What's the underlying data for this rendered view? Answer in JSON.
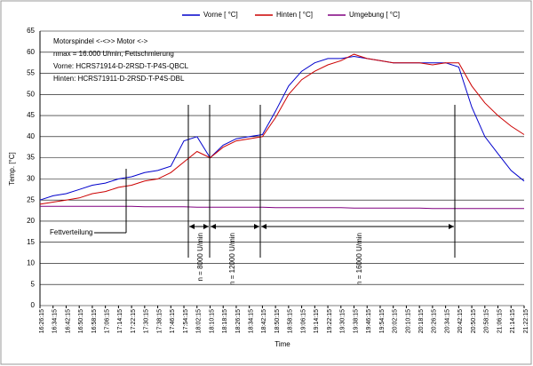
{
  "chart_data": {
    "type": "line",
    "categories": [
      "16:26:15",
      "16:34:15",
      "16:42:15",
      "16:50:15",
      "16:58:15",
      "17:06:15",
      "17:14:15",
      "17:22:15",
      "17:30:15",
      "17:38:15",
      "17:46:15",
      "17:54:15",
      "18:02:15",
      "18:10:15",
      "18:18:15",
      "18:26:15",
      "18:34:15",
      "18:42:15",
      "18:50:15",
      "18:58:15",
      "19:06:15",
      "19:14:15",
      "19:22:15",
      "19:30:15",
      "19:38:15",
      "19:46:15",
      "19:54:15",
      "20:02:15",
      "20:10:15",
      "20:18:15",
      "20:26:15",
      "20:34:15",
      "20:42:15",
      "20:50:15",
      "20:58:15",
      "21:06:15",
      "21:14:15",
      "21:22:15"
    ],
    "series": [
      {
        "name": "Vorne [ °C]",
        "color": "#0000cc",
        "values": [
          25,
          26,
          26.5,
          27.5,
          28.5,
          29,
          30,
          30.5,
          31.5,
          32,
          33,
          39,
          40,
          35,
          38,
          39.5,
          40,
          40.5,
          46,
          52,
          55.5,
          57.5,
          58.5,
          58.5,
          59,
          58.5,
          58,
          57.5,
          57.5,
          57.5,
          57.5,
          57.5,
          56.5,
          47,
          40,
          36,
          32,
          29.5
        ]
      },
      {
        "name": "Hinten [ °C]",
        "color": "#cc0000",
        "values": [
          24,
          24.5,
          25,
          25.5,
          26.5,
          27,
          28,
          28.5,
          29.5,
          30,
          31.5,
          34,
          36.5,
          35,
          37.5,
          39,
          39.5,
          40,
          44.5,
          50,
          53.5,
          55.5,
          57,
          58,
          59.5,
          58.5,
          58,
          57.5,
          57.5,
          57.5,
          57,
          57.5,
          57.5,
          52,
          48,
          45,
          42.5,
          40.5
        ]
      },
      {
        "name": "Umgebung [ °C]",
        "color": "#800080",
        "values": [
          23.5,
          23.5,
          23.5,
          23.5,
          23.5,
          23.5,
          23.5,
          23.5,
          23.4,
          23.4,
          23.4,
          23.4,
          23.3,
          23.3,
          23.3,
          23.3,
          23.3,
          23.3,
          23.2,
          23.2,
          23.2,
          23.2,
          23.2,
          23.2,
          23.1,
          23.1,
          23.1,
          23.1,
          23.1,
          23.1,
          23,
          23,
          23,
          23,
          23,
          23,
          23,
          23
        ]
      }
    ],
    "ylim": [
      0,
      65
    ],
    "yticks": [
      0,
      5,
      10,
      15,
      20,
      25,
      30,
      35,
      40,
      45,
      50,
      55,
      60,
      65
    ],
    "grid": true,
    "xlabel": "Time",
    "ylabel": "Temp. [°C]",
    "annotations": [
      "Motorspindel <-<>> Motor <->",
      "nmax = 16.000 U/min, Fettschmierung",
      "Vorne: HCRS71914-D-2RSD-T-P4S-QBCL",
      "Hinten: HCRS71911-D-2RSD-T-P4S-DBL",
      "Fettverteilung",
      "n = 8000 U/min",
      "n = 12000 U/min",
      "n = 16000 U/min"
    ]
  }
}
